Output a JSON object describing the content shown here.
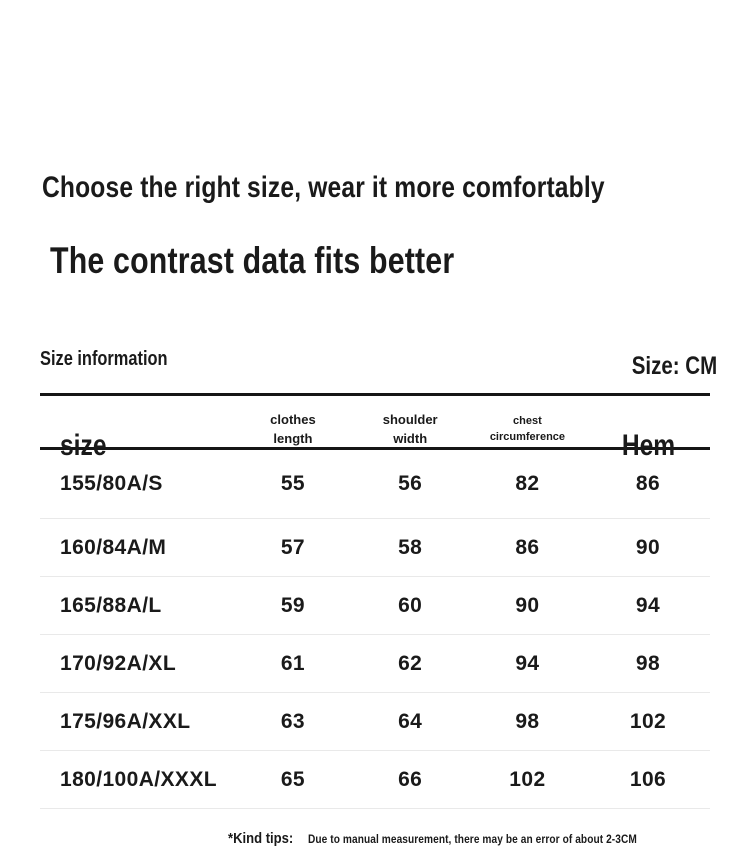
{
  "page": {
    "headline_small": "Choose the right size, wear it more comfortably",
    "headline_large": "The contrast data fits better"
  },
  "size_section": {
    "label": "Size information",
    "unit": "Size: CM"
  },
  "chart_data": {
    "type": "table",
    "title": "Size information",
    "unit": "CM",
    "columns": [
      "size",
      "clothes length",
      "shoulder width",
      "chest circumference",
      "Hem"
    ],
    "rows": [
      [
        "155/80A/S",
        55,
        56,
        82,
        86
      ],
      [
        "160/84A/M",
        57,
        58,
        86,
        90
      ],
      [
        "165/88A/L",
        59,
        60,
        90,
        94
      ],
      [
        "170/92A/XL",
        61,
        62,
        94,
        98
      ],
      [
        "175/96A/XXL",
        63,
        64,
        98,
        102
      ],
      [
        "180/100A/XXXL",
        65,
        66,
        102,
        106
      ]
    ]
  },
  "table": {
    "columns": {
      "size": "size",
      "clothes_length": "clothes\nlength",
      "shoulder_width": "shoulder\nwidth",
      "chest_circumference": "chest\ncircumference",
      "hem": "Hem"
    },
    "rows": [
      {
        "size": "155/80A/S",
        "values": [
          "55",
          "56",
          "82",
          "86"
        ]
      },
      {
        "size": "160/84A/M",
        "values": [
          "57",
          "58",
          "86",
          "90"
        ]
      },
      {
        "size": "165/88A/L",
        "values": [
          "59",
          "60",
          "90",
          "94"
        ]
      },
      {
        "size": "170/92A/XL",
        "values": [
          "61",
          "62",
          "94",
          "98"
        ]
      },
      {
        "size": "175/96A/XXL",
        "values": [
          "63",
          "64",
          "98",
          "102"
        ]
      },
      {
        "size": "180/100A/XXXL",
        "values": [
          "65",
          "66",
          "102",
          "106"
        ]
      }
    ]
  },
  "footer": {
    "tips_label": "*Kind tips:",
    "tips_text": "Due to manual measurement, there may be an error of about 2-3CM"
  },
  "colors": {
    "text": "#1a1a1a",
    "table_border": "#161616",
    "row_divider": "#e9e9e9",
    "background": "#ffffff"
  }
}
